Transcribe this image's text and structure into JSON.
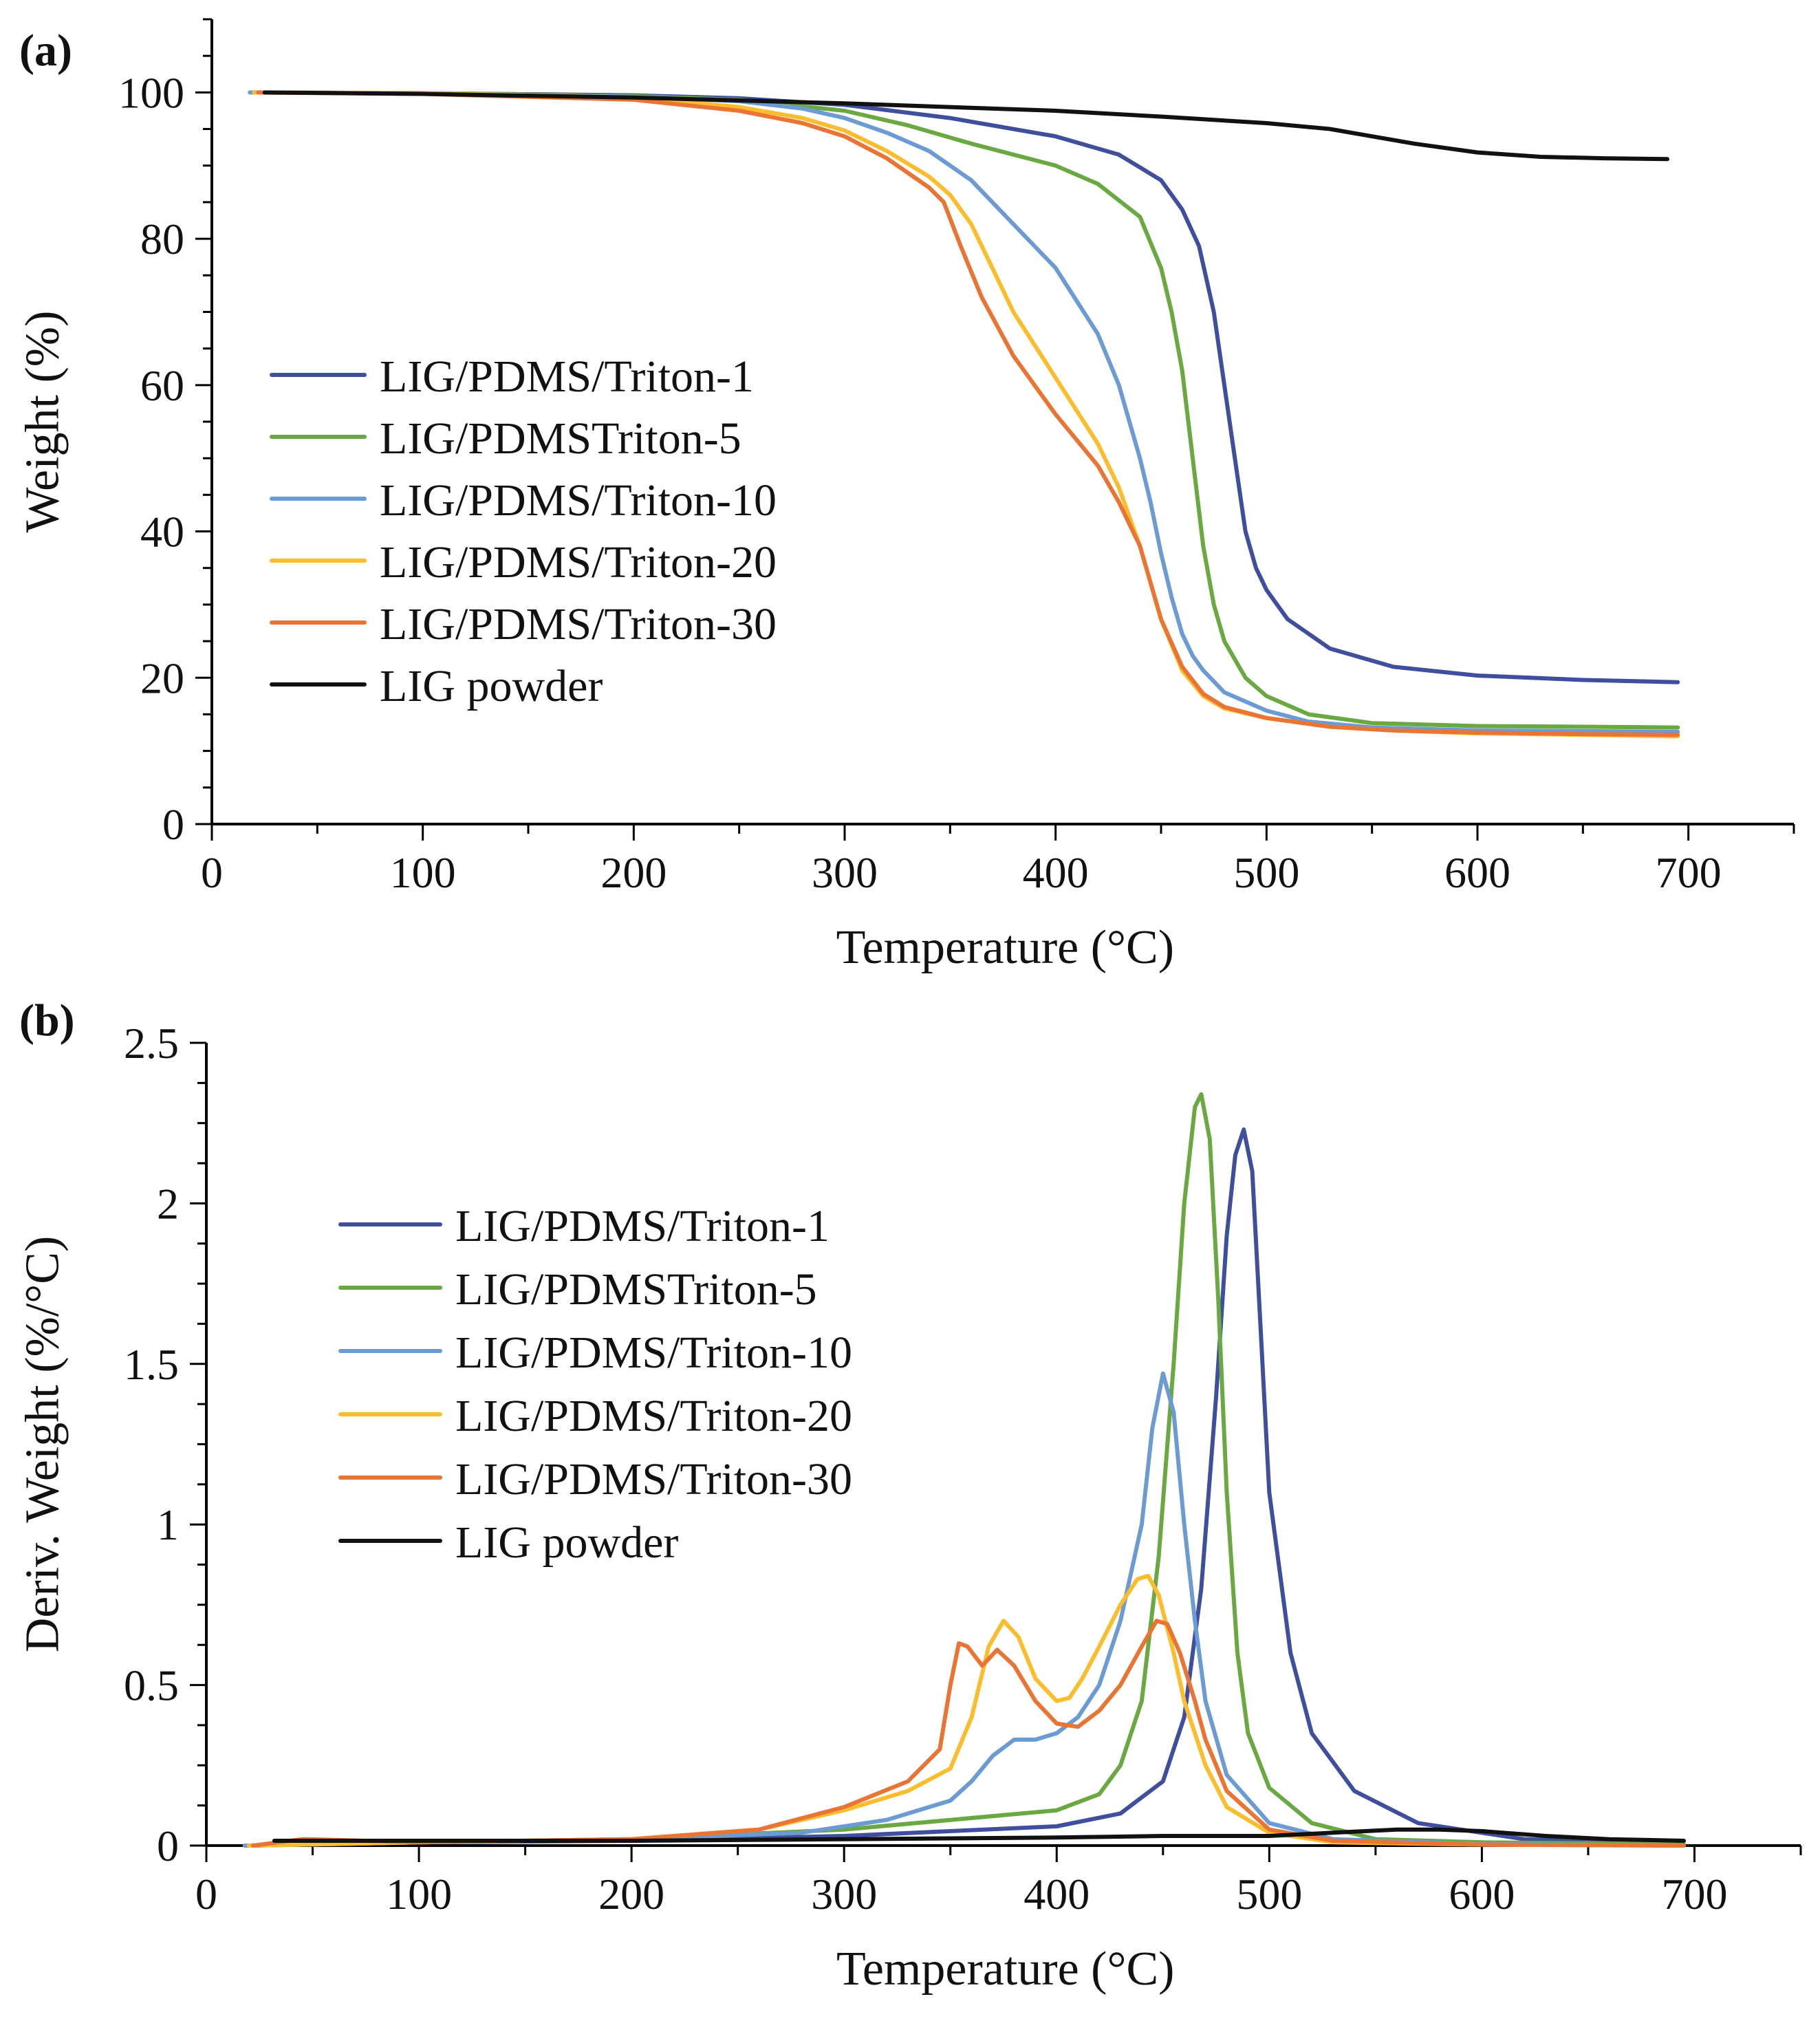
{
  "colors": {
    "triton1": "#3f4f9e",
    "triton5": "#6aa842",
    "triton10": "#6b9bd2",
    "triton20": "#fbbd2e",
    "triton30": "#ea7433",
    "lig": "#111111"
  },
  "chart_data": [
    {
      "panel_label": "(a)",
      "type": "line",
      "title": "",
      "xlabel": "Temperature (°C)",
      "ylabel": "Weight (%)",
      "xlim": [
        0,
        750
      ],
      "ylim": [
        0,
        110
      ],
      "xticks": [
        0,
        100,
        200,
        300,
        400,
        500,
        600,
        700
      ],
      "xtick_labels": [
        "0",
        "100",
        "200",
        "300",
        "400",
        "500",
        "600",
        "700"
      ],
      "yticks": [
        0,
        20,
        40,
        60,
        80,
        100
      ],
      "ytick_labels": [
        "0",
        "20",
        "40",
        "60",
        "80",
        "100"
      ],
      "grid": false,
      "legend_position": "center-left",
      "series": [
        {
          "name": "LIG/PDMS/Triton-1",
          "color_key": "triton1",
          "x": [
            20,
            100,
            200,
            250,
            300,
            350,
            400,
            430,
            450,
            460,
            468,
            475,
            480,
            485,
            490,
            495,
            500,
            510,
            530,
            560,
            600,
            650,
            695
          ],
          "y": [
            100,
            99.9,
            99.6,
            99.2,
            98.3,
            96.5,
            94,
            91.5,
            88,
            84,
            79,
            70,
            60,
            50,
            40,
            35,
            32,
            28,
            24,
            21.5,
            20.3,
            19.7,
            19.4
          ]
        },
        {
          "name": "LIG/PDMSTriton-5",
          "color_key": "triton5",
          "x": [
            20,
            100,
            200,
            250,
            300,
            330,
            360,
            400,
            420,
            440,
            450,
            455,
            460,
            465,
            470,
            475,
            480,
            490,
            500,
            520,
            550,
            600,
            650,
            695
          ],
          "y": [
            100,
            99.9,
            99.5,
            99,
            97.5,
            95.5,
            93,
            90,
            87.5,
            83,
            76,
            70,
            62,
            50,
            38,
            30,
            25,
            20,
            17.5,
            15,
            13.8,
            13.4,
            13.3,
            13.2
          ]
        },
        {
          "name": "LIG/PDMS/Triton-10",
          "color_key": "triton10",
          "x": [
            18,
            100,
            200,
            250,
            280,
            300,
            320,
            340,
            360,
            380,
            400,
            420,
            430,
            440,
            445,
            450,
            455,
            460,
            465,
            470,
            480,
            500,
            520,
            550,
            600,
            650,
            695
          ],
          "y": [
            100,
            99.9,
            99.4,
            98.8,
            97.8,
            96.5,
            94.5,
            92,
            88,
            82,
            76,
            67,
            60,
            50,
            44,
            37,
            31,
            26,
            23,
            21,
            18,
            15.5,
            14,
            13.2,
            12.8,
            12.7,
            12.6
          ]
        },
        {
          "name": "LIG/PDMS/Triton-20",
          "color_key": "triton20",
          "x": [
            20,
            100,
            200,
            250,
            280,
            300,
            320,
            340,
            350,
            360,
            370,
            380,
            400,
            420,
            430,
            440,
            445,
            450,
            460,
            470,
            480,
            500,
            530,
            560,
            600,
            650,
            695
          ],
          "y": [
            100,
            99.9,
            99.3,
            98,
            96.5,
            94.8,
            92,
            88.5,
            86,
            82,
            76,
            70,
            61,
            52,
            46,
            38,
            33,
            28,
            21,
            17.5,
            15.8,
            14.5,
            13.3,
            12.8,
            12.4,
            12.2,
            12.0
          ]
        },
        {
          "name": "LIG/PDMS/Triton-30",
          "color_key": "triton30",
          "x": [
            22,
            100,
            200,
            250,
            280,
            300,
            320,
            340,
            347,
            355,
            365,
            380,
            400,
            420,
            430,
            440,
            445,
            450,
            460,
            470,
            480,
            500,
            530,
            560,
            600,
            650,
            695
          ],
          "y": [
            100,
            99.8,
            99.0,
            97.5,
            95.8,
            94,
            91,
            87,
            85,
            79,
            72,
            64,
            56,
            49,
            44,
            38,
            33,
            28,
            21.5,
            17.8,
            16,
            14.5,
            13.3,
            12.8,
            12.5,
            12.3,
            12.2
          ]
        },
        {
          "name": "LIG powder",
          "color_key": "lig",
          "x": [
            25,
            100,
            200,
            300,
            400,
            450,
            500,
            530,
            550,
            570,
            600,
            630,
            660,
            690
          ],
          "y": [
            100,
            99.8,
            99.3,
            98.5,
            97.5,
            96.7,
            95.8,
            95,
            94,
            93,
            91.8,
            91.2,
            91,
            90.9
          ]
        }
      ]
    },
    {
      "panel_label": "(b)",
      "type": "line",
      "title": "",
      "xlabel": "Temperature (°C)",
      "ylabel": "Deriv. Weight (%/°C)",
      "xlim": [
        0,
        750
      ],
      "ylim": [
        0,
        2.5
      ],
      "xticks": [
        0,
        100,
        200,
        300,
        400,
        500,
        600,
        700
      ],
      "xtick_labels": [
        "0",
        "100",
        "200",
        "300",
        "400",
        "500",
        "600",
        "700"
      ],
      "yticks": [
        0,
        0.5,
        1,
        1.5,
        2,
        2.5
      ],
      "ytick_labels": [
        "0",
        "0.5",
        "1",
        "1.5",
        "2",
        "2.5"
      ],
      "grid": false,
      "legend_position": "upper-left",
      "series": [
        {
          "name": "LIG/PDMS/Triton-1",
          "color_key": "triton1",
          "x": [
            20,
            100,
            200,
            300,
            400,
            430,
            450,
            460,
            468,
            475,
            480,
            484,
            488,
            492,
            496,
            500,
            510,
            520,
            540,
            570,
            620,
            695
          ],
          "y": [
            0,
            0.01,
            0.015,
            0.03,
            0.06,
            0.1,
            0.2,
            0.4,
            0.8,
            1.4,
            1.9,
            2.15,
            2.23,
            2.1,
            1.6,
            1.1,
            0.6,
            0.35,
            0.17,
            0.07,
            0.02,
            0.005
          ]
        },
        {
          "name": "LIG/PDMSTriton-5",
          "color_key": "triton5",
          "x": [
            20,
            100,
            200,
            300,
            350,
            400,
            420,
            430,
            440,
            448,
            455,
            460,
            465,
            468,
            472,
            476,
            480,
            485,
            490,
            500,
            520,
            550,
            600,
            695
          ],
          "y": [
            0,
            0.01,
            0.02,
            0.05,
            0.08,
            0.11,
            0.16,
            0.25,
            0.45,
            0.9,
            1.5,
            2.0,
            2.3,
            2.34,
            2.2,
            1.7,
            1.1,
            0.6,
            0.35,
            0.18,
            0.07,
            0.02,
            0.01,
            0.005
          ]
        },
        {
          "name": "LIG/PDMS/Triton-10",
          "color_key": "triton10",
          "x": [
            18,
            100,
            200,
            280,
            320,
            350,
            360,
            370,
            380,
            390,
            400,
            410,
            420,
            430,
            440,
            445,
            450,
            455,
            460,
            465,
            470,
            480,
            500,
            530,
            600,
            695
          ],
          "y": [
            0,
            0.01,
            0.02,
            0.04,
            0.08,
            0.14,
            0.2,
            0.28,
            0.33,
            0.33,
            0.35,
            0.4,
            0.5,
            0.7,
            1.0,
            1.3,
            1.47,
            1.35,
            1.0,
            0.7,
            0.45,
            0.22,
            0.07,
            0.02,
            0.005,
            0.0
          ]
        },
        {
          "name": "LIG/PDMS/Triton-20",
          "color_key": "triton20",
          "x": [
            20,
            100,
            200,
            260,
            300,
            330,
            350,
            360,
            368,
            375,
            382,
            390,
            400,
            406,
            412,
            420,
            430,
            438,
            443,
            448,
            455,
            460,
            470,
            480,
            500,
            530,
            600,
            695
          ],
          "y": [
            0,
            0.01,
            0.02,
            0.05,
            0.11,
            0.17,
            0.24,
            0.4,
            0.62,
            0.7,
            0.65,
            0.52,
            0.45,
            0.46,
            0.52,
            0.62,
            0.75,
            0.83,
            0.84,
            0.78,
            0.6,
            0.45,
            0.25,
            0.12,
            0.04,
            0.01,
            0.003,
            0.0
          ]
        },
        {
          "name": "LIG/PDMS/Triton-30",
          "color_key": "triton30",
          "x": [
            22,
            45,
            48,
            100,
            200,
            260,
            300,
            330,
            345,
            350,
            354,
            358,
            365,
            372,
            380,
            390,
            400,
            410,
            420,
            430,
            440,
            447,
            452,
            458,
            465,
            470,
            480,
            500,
            530,
            600,
            695
          ],
          "y": [
            0,
            0.02,
            0.02,
            0.01,
            0.02,
            0.05,
            0.12,
            0.2,
            0.3,
            0.5,
            0.63,
            0.62,
            0.56,
            0.61,
            0.56,
            0.45,
            0.38,
            0.37,
            0.42,
            0.5,
            0.62,
            0.7,
            0.69,
            0.6,
            0.45,
            0.33,
            0.17,
            0.05,
            0.015,
            0.003,
            0.0
          ]
        },
        {
          "name": "LIG powder",
          "color_key": "lig",
          "x": [
            32,
            100,
            200,
            300,
            400,
            450,
            500,
            530,
            560,
            580,
            600,
            630,
            660,
            695
          ],
          "y": [
            0.015,
            0.015,
            0.015,
            0.02,
            0.025,
            0.03,
            0.03,
            0.04,
            0.05,
            0.05,
            0.045,
            0.03,
            0.02,
            0.015
          ]
        }
      ]
    }
  ]
}
